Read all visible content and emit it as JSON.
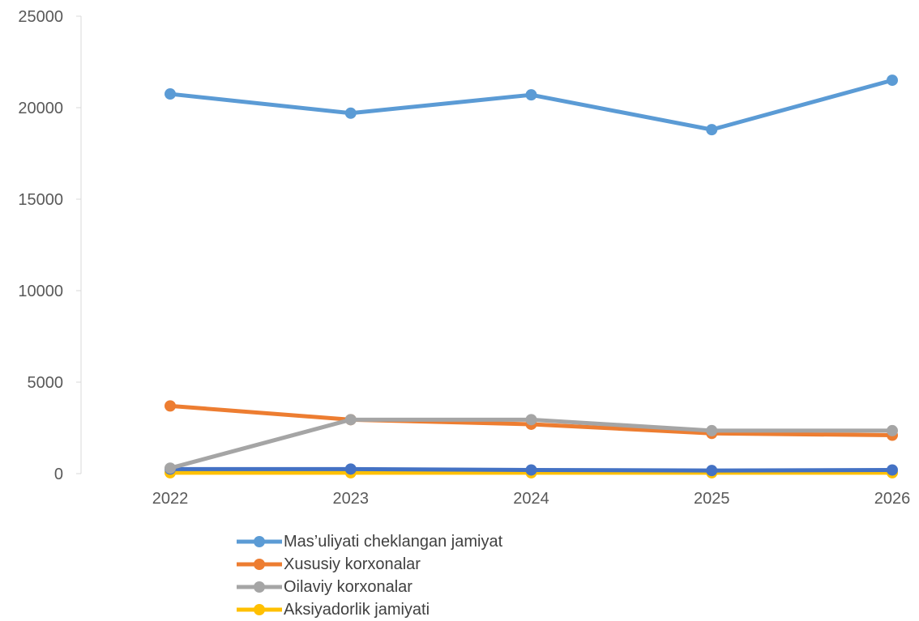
{
  "chart_data": {
    "type": "line",
    "categories": [
      "2022",
      "2023",
      "2024",
      "2025",
      "2026"
    ],
    "ylim": [
      0,
      25000
    ],
    "yticks": [
      0,
      5000,
      10000,
      15000,
      20000,
      25000
    ],
    "grid": false,
    "legend_position": "bottom",
    "series": [
      {
        "name": "Mas’uliyati cheklangan jamiyat",
        "color": "#5B9BD5",
        "values": [
          20750,
          19700,
          20700,
          18800,
          21500
        ],
        "in_legend": true
      },
      {
        "name": "Xususiy korxonalar",
        "color": "#ED7D31",
        "values": [
          3700,
          2950,
          2700,
          2200,
          2100
        ],
        "in_legend": true
      },
      {
        "name": "Oilaviy korxonalar",
        "color": "#A5A5A5",
        "values": [
          300,
          2950,
          2950,
          2350,
          2350
        ],
        "in_legend": true
      },
      {
        "name": "Aksiyadorlik jamiyati",
        "color": "#FFC000",
        "values": [
          50,
          50,
          50,
          50,
          50
        ],
        "in_legend": true
      },
      {
        "name": "",
        "color": "#4472C4",
        "values": [
          250,
          250,
          200,
          170,
          200
        ],
        "in_legend": false
      }
    ]
  }
}
